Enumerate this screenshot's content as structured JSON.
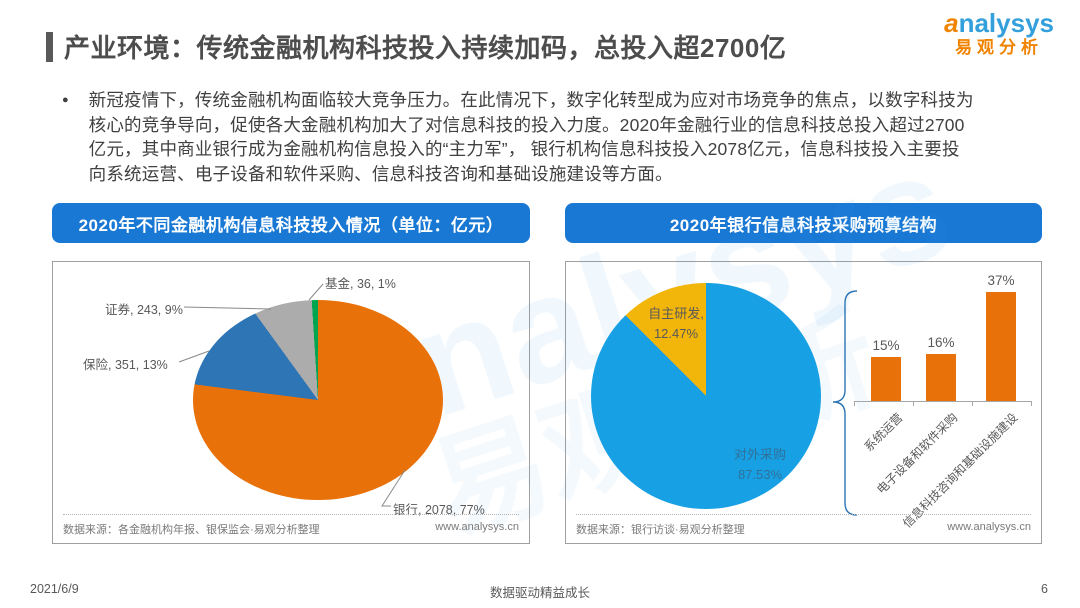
{
  "header": {
    "title": "产业环境：传统金融机构科技投入持续加码，总投入超2700亿",
    "logo": {
      "brand_a": "a",
      "brand_rest": "nalysys",
      "brand_cn": "易观分析"
    }
  },
  "intro": {
    "bullet": "●",
    "lines": [
      "新冠疫情下，传统金融机构面临较大竞争压力。在此情况下，数字化转型成为应对市场竞争的焦点，以数字科技为",
      "核心的竞争导向，促使各大金融机构加大了对信息科技的投入力度。2020年金融行业的信息科技总投入超过2700",
      "亿元，其中商业银行成为金融机构信息投入的“主力军”， 银行机构信息科技投入2078亿元，信息科技投入主要投",
      "向系统运营、电子设备和软件采购、信息科技咨询和基础设施建设等方面。"
    ]
  },
  "left_panel": {
    "banner": "2020年不同金融机构信息科技投入情况（单位：亿元）",
    "source": "数据来源：各金融机构年报、银保监会·易观分析整理",
    "website": "www.analysys.cn"
  },
  "right_panel": {
    "banner": "2020年银行信息科技采购预算结构",
    "source": "数据来源：银行访谈·易观分析整理",
    "website": "www.analysys.cn"
  },
  "watermark": {
    "line1_a": "a",
    "line1_rest": "nalysys",
    "line2": "易观分析"
  },
  "footer": {
    "date": "2021/6/9",
    "slogan": "数据驱动精益成长",
    "page": "6"
  },
  "chart_data": [
    {
      "type": "pie",
      "title": "2020年不同金融机构信息科技投入情况（单位：亿元）",
      "unit": "亿元",
      "start_angle": "12-oclock, clockwise",
      "legend_position": "none",
      "slices": [
        {
          "name": "银行",
          "value": 2078,
          "pct": 77,
          "label": "银行, 2078, 77%",
          "color": "#E8710A"
        },
        {
          "name": "保险",
          "value": 351,
          "pct": 13,
          "label": "保险, 351, 13%",
          "color": "#2E75B6"
        },
        {
          "name": "证券",
          "value": 243,
          "pct": 9,
          "label": "证券, 243, 9%",
          "color": "#ACACAC"
        },
        {
          "name": "基金",
          "value": 36,
          "pct": 1,
          "label": "基金, 36, 1%",
          "color": "#00A550"
        }
      ]
    },
    {
      "type": "pie",
      "title": "2020年银行信息科技采购预算结构",
      "start_angle": "12-oclock, clockwise",
      "legend_position": "none",
      "slices": [
        {
          "name": "对外采购",
          "pct": 87.53,
          "label_name": "对外采购",
          "label_pct": "87.53%",
          "color": "#18A0E4"
        },
        {
          "name": "自主研发",
          "pct": 12.47,
          "label_name": "自主研发,",
          "label_pct": "12.47%",
          "color": "#F2B50A"
        }
      ]
    },
    {
      "type": "bar",
      "title": "2020年银行信息科技采购预算结构（对外采购明细）",
      "categories": [
        "系统运营",
        "电子设备和软件采购",
        "信息科技咨询和基础设施建设"
      ],
      "values": [
        15,
        16,
        37
      ],
      "value_labels": [
        "15%",
        "16%",
        "37%"
      ],
      "bar_color": "#E8710A",
      "ylim": [
        0,
        40
      ],
      "grid": false
    }
  ]
}
